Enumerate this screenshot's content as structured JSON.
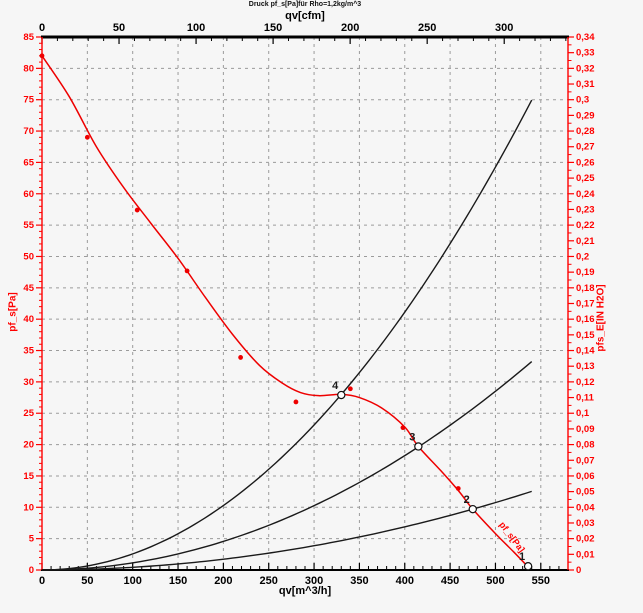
{
  "chart_data": {
    "type": "line",
    "title": "Druck pf_s[Pa]für Rho=1,2kg/m^3",
    "axes": {
      "top": {
        "label": "qv[cfm]",
        "min": 0,
        "max": 341.4,
        "major_step": 50,
        "minor_step": 10,
        "tick_labels": [
          "0",
          "50",
          "100",
          "150",
          "200",
          "250",
          "300"
        ],
        "color": "#000000"
      },
      "bottom": {
        "label": "qv[m^3/h]",
        "min": 0,
        "max": 580,
        "major_step": 50,
        "minor_step": 10,
        "tick_labels": [
          "0",
          "50",
          "100",
          "150",
          "200",
          "250",
          "300",
          "350",
          "400",
          "450",
          "500",
          "550"
        ],
        "color": "#000000"
      },
      "left": {
        "label": "pf_s[Pa]",
        "min": 0,
        "max": 85,
        "major_step": 5,
        "minor_step": 1,
        "tick_labels": [
          "0",
          "5",
          "10",
          "15",
          "20",
          "25",
          "30",
          "35",
          "40",
          "45",
          "50",
          "55",
          "60",
          "65",
          "70",
          "75",
          "80",
          "85"
        ],
        "color": "#ff0000"
      },
      "right": {
        "label": "pfs_E[IN H2O]",
        "min": 0,
        "max": 0.34,
        "major_step": 0.01,
        "minor_step": 0.005,
        "tick_labels": [
          "0",
          "0,01",
          "0,02",
          "0,03",
          "0,04",
          "0,05",
          "0,06",
          "0,07",
          "0,08",
          "0,09",
          "0,1",
          "0,11",
          "0,12",
          "0,13",
          "0,14",
          "0,15",
          "0,16",
          "0,17",
          "0,18",
          "0,19",
          "0,2",
          "0,21",
          "0,22",
          "0,23",
          "0,24",
          "0,25",
          "0,26",
          "0,27",
          "0,28",
          "0,29",
          "0,3",
          "0,31",
          "0,32",
          "0,33",
          "0,34"
        ],
        "color": "#ff0000"
      }
    },
    "grid": {
      "show": true,
      "color": "#9b9b9b"
    },
    "fan_curve": {
      "name": "fan-pressure-curve",
      "color": "#ee0000",
      "curve_points": [
        [
          0,
          82
        ],
        [
          30,
          75.5
        ],
        [
          60,
          67.5
        ],
        [
          90,
          61
        ],
        [
          120,
          55.3
        ],
        [
          150,
          49.7
        ],
        [
          180,
          43.5
        ],
        [
          210,
          37.6
        ],
        [
          240,
          32.6
        ],
        [
          265,
          29.8
        ],
        [
          285,
          28.3
        ],
        [
          305,
          27.8
        ],
        [
          330,
          28
        ],
        [
          350,
          27.5
        ],
        [
          375,
          25.8
        ],
        [
          400,
          22.8
        ],
        [
          415,
          19.7
        ],
        [
          440,
          15.8
        ],
        [
          460,
          12.5
        ],
        [
          475,
          9.7
        ],
        [
          500,
          5.8
        ],
        [
          520,
          2.9
        ],
        [
          536,
          0.5
        ]
      ],
      "measured_points": [
        [
          0,
          82
        ],
        [
          50,
          69
        ],
        [
          105,
          57.4
        ],
        [
          160,
          47.7
        ],
        [
          219,
          33.9
        ],
        [
          280,
          26.8
        ],
        [
          340,
          28.9
        ],
        [
          398,
          22.7
        ],
        [
          459,
          13
        ],
        [
          536,
          0.8
        ]
      ],
      "annotation": {
        "text": "pf_s[Pa]",
        "rotation_deg": 53
      }
    },
    "system_curves": [
      {
        "name": "system-curve-a",
        "color": "#1a1a1a",
        "k": 0.000257,
        "q_end": 542
      },
      {
        "name": "system-curve-b",
        "color": "#1a1a1a",
        "k": 0.000114,
        "q_end": 542
      },
      {
        "name": "system-curve-c",
        "color": "#1a1a1a",
        "k": 4.3e-05,
        "q_end": 542
      }
    ],
    "operating_points": [
      {
        "label": "4",
        "qv": 330,
        "pf": 27.9
      },
      {
        "label": "3",
        "qv": 415,
        "pf": 19.7
      },
      {
        "label": "2",
        "qv": 475,
        "pf": 9.7
      },
      {
        "label": "1",
        "qv": 536,
        "pf": 0.6
      }
    ]
  }
}
